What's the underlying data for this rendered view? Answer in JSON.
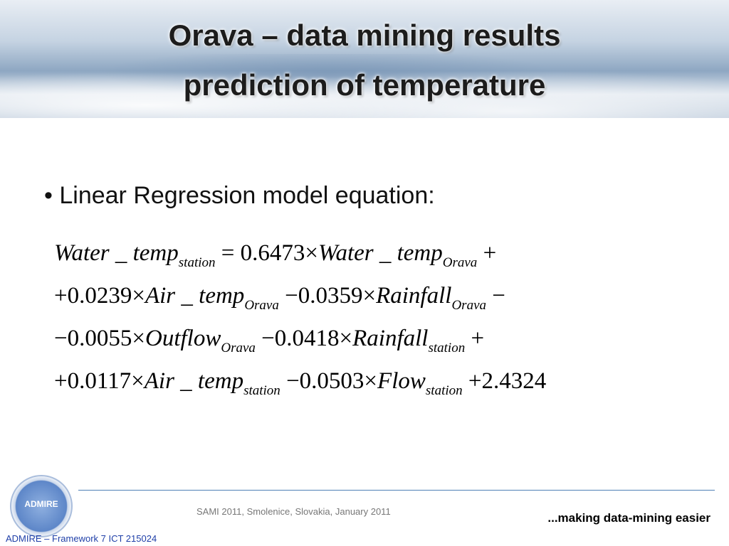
{
  "header": {
    "title_lines": [
      "Orava – data mining results",
      "prediction of temperature"
    ]
  },
  "bullet": "Linear Regression model equation:",
  "equation": {
    "lines": [
      [
        {
          "text": "Water _ temp",
          "sub": "station"
        },
        {
          "text": " = 0.6473×"
        },
        {
          "text": "Water _ temp",
          "sub": "Orava"
        },
        {
          "text": " +"
        }
      ],
      [
        {
          "text": "+0.0239×"
        },
        {
          "text": "Air _ temp",
          "sub": "Orava"
        },
        {
          "text": " −0.0359×"
        },
        {
          "text": "Rainfall",
          "sub": "Orava"
        },
        {
          "text": " −"
        }
      ],
      [
        {
          "text": "−0.0055×"
        },
        {
          "text": "Outflow",
          "sub": "Orava"
        },
        {
          "text": " −0.0418×"
        },
        {
          "text": "Rainfall",
          "sub": "station"
        },
        {
          "text": " +"
        }
      ],
      [
        {
          "text": "+0.0117×"
        },
        {
          "text": "Air _ temp",
          "sub": "station"
        },
        {
          "text": " −0.0503×"
        },
        {
          "text": "Flow",
          "sub": "station"
        },
        {
          "text": " +2.4324"
        }
      ]
    ]
  },
  "footer": {
    "logo": "ADMIRE",
    "event": "SAMI 2011, Smolenice, Slovakia, January 2011",
    "tagline": "...making data-mining easier",
    "project": "ADMIRE – Framework 7 ICT 215024"
  }
}
